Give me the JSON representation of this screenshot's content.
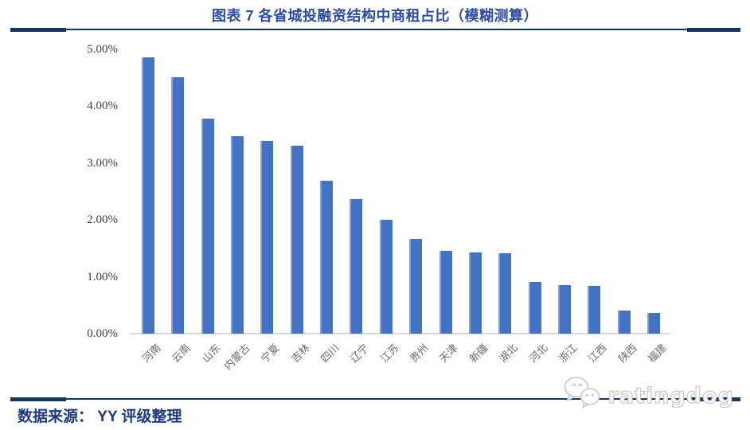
{
  "header": {
    "title": "图表 7 各省城投融资结构中商租占比（模糊测算）"
  },
  "chart_data": {
    "type": "bar",
    "title": "图表 7 各省城投融资结构中商租占比（模糊测算）",
    "categories": [
      "河南",
      "云南",
      "山东",
      "内蒙古",
      "宁夏",
      "吉林",
      "四川",
      "辽宁",
      "江苏",
      "贵州",
      "天津",
      "新疆",
      "湖北",
      "河北",
      "浙江",
      "江西",
      "陕西",
      "福建"
    ],
    "values": [
      4.85,
      4.51,
      3.78,
      3.47,
      3.39,
      3.3,
      2.68,
      2.36,
      2.0,
      1.66,
      1.46,
      1.43,
      1.41,
      0.91,
      0.85,
      0.84,
      0.41,
      0.37
    ],
    "unit": "%",
    "xlabel": "",
    "ylabel": "",
    "ylim": [
      0,
      5
    ],
    "yticks": [
      "0.00%",
      "1.00%",
      "2.00%",
      "3.00%",
      "4.00%",
      "5.00%"
    ],
    "grid": false,
    "legend": "none",
    "bar_color": "#4472C4"
  },
  "watermark": {
    "text": "ratingdog",
    "icon": "wechat-chat-bubbles"
  },
  "footer": {
    "text": "数据来源： YY 评级整理"
  },
  "colors": {
    "title_text": "#2B4CA2",
    "footer_text": "#203A7E",
    "divider": "#17365D",
    "bar": "#4472C4",
    "axis_line": "#D9D9D9",
    "y_tick_text": "#404040",
    "x_tick_text": "#6B6B6B"
  }
}
